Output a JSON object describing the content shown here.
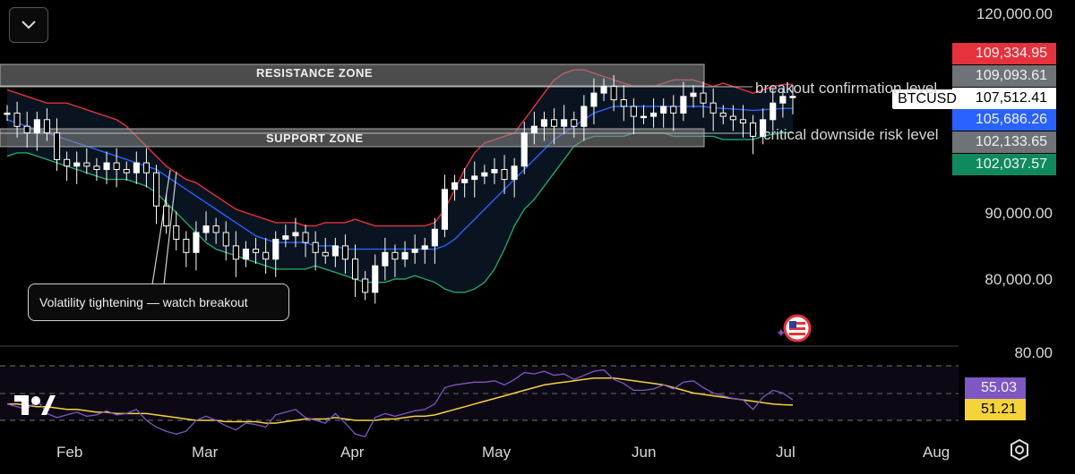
{
  "symbol": "BTCUSD",
  "price_axis": {
    "ticks": [
      "120,000.00",
      "90,000.00",
      "80,000.00"
    ],
    "badges": [
      {
        "text": "109,334.95",
        "color": "#e5323c"
      },
      {
        "text": "109,093.61",
        "color": "#6f7378"
      },
      {
        "text": "107,512.41",
        "color": "#ffffff"
      },
      {
        "text": "105,686.26",
        "color": "#2962ff"
      },
      {
        "text": "102,133.65",
        "color": "#6f7378"
      },
      {
        "text": "102,037.57",
        "color": "#0f8a5f"
      }
    ]
  },
  "rsi_axis": {
    "tick": "80.00",
    "badges": [
      {
        "text": "55.03",
        "color": "#7e57c2"
      },
      {
        "text": "51.21",
        "color": "#f5d33b"
      }
    ]
  },
  "annotations": {
    "resistance_zone": "RESISTANCE ZONE",
    "support_zone": "SUPPORT ZONE",
    "breakout_level": "breakout confirmation level",
    "downside_level": "critical downside risk level",
    "callout": "Volatility tightening — watch breakout"
  },
  "time_axis": [
    "Feb",
    "Mar",
    "Apr",
    "May",
    "Jun",
    "Jul",
    "Aug"
  ],
  "icons": {
    "collapse": "chevron-down-icon",
    "logo": "tradingview-logo",
    "settings": "settings-icon",
    "flag": "us-flag-icon"
  },
  "colors": {
    "candles": "#ffffff",
    "upper_band": "#e5323c",
    "basis": "#2962ff",
    "lower_band": "#26a269",
    "rsi": "#7e57c2",
    "rsi_ma": "#f5d33b"
  },
  "chart_data": {
    "type": "candlestick",
    "symbol": "BTCUSD",
    "x": [
      "Jan 23",
      "Jan 25",
      "Jan 27",
      "Jan 29",
      "Jan 31",
      "Feb 2",
      "Feb 4",
      "Feb 6",
      "Feb 8",
      "Feb 10",
      "Feb 12",
      "Feb 14",
      "Feb 16",
      "Feb 18",
      "Feb 20",
      "Feb 22",
      "Feb 24",
      "Feb 26",
      "Feb 28",
      "Mar 2",
      "Mar 4",
      "Mar 6",
      "Mar 8",
      "Mar 10",
      "Mar 12",
      "Mar 14",
      "Mar 16",
      "Mar 18",
      "Mar 20",
      "Mar 22",
      "Mar 24",
      "Mar 26",
      "Mar 28",
      "Mar 30",
      "Apr 1",
      "Apr 3",
      "Apr 5",
      "Apr 7",
      "Apr 9",
      "Apr 11",
      "Apr 13",
      "Apr 15",
      "Apr 17",
      "Apr 19",
      "Apr 21",
      "Apr 23",
      "Apr 25",
      "Apr 27",
      "Apr 29",
      "May 1",
      "May 3",
      "May 5",
      "May 7",
      "May 9",
      "May 11",
      "May 13",
      "May 15",
      "May 17",
      "May 19",
      "May 21",
      "May 23",
      "May 25",
      "May 27",
      "May 29",
      "May 31",
      "Jun 2",
      "Jun 4",
      "Jun 6",
      "Jun 8",
      "Jun 10",
      "Jun 12",
      "Jun 14",
      "Jun 16",
      "Jun 18",
      "Jun 20",
      "Jun 22",
      "Jun 24",
      "Jun 26",
      "Jun 28",
      "Jun 30"
    ],
    "close": [
      105000,
      103000,
      102000,
      104000,
      102000,
      98000,
      97000,
      97500,
      97000,
      96500,
      97500,
      96500,
      96000,
      97500,
      96000,
      91000,
      88000,
      86000,
      84000,
      87000,
      88000,
      87000,
      85000,
      83000,
      84500,
      84000,
      83000,
      86000,
      86500,
      87000,
      85500,
      84000,
      83500,
      85000,
      83000,
      80000,
      78000,
      82000,
      84000,
      83000,
      84000,
      84500,
      85000,
      87500,
      93500,
      94500,
      95000,
      95500,
      96000,
      96500,
      95000,
      97000,
      102000,
      103000,
      104000,
      103000,
      104000,
      103000,
      106000,
      108000,
      109000,
      107000,
      106000,
      104500,
      104500,
      105000,
      106000,
      105000,
      107500,
      108000,
      106500,
      105000,
      104500,
      104000,
      103500,
      101500,
      104000,
      106500,
      107500,
      107512
    ],
    "series": [
      {
        "name": "upper band",
        "values": [
          108500,
          108000,
          107500,
          107000,
          106500,
          106500,
          106500,
          106000,
          105500,
          105000,
          104500,
          104000,
          103000,
          101500,
          100000,
          98500,
          97000,
          96000,
          95000,
          94500,
          93500,
          92500,
          91500,
          90500,
          90000,
          89500,
          89000,
          88500,
          88500,
          88500,
          88000,
          88000,
          88500,
          88500,
          88500,
          89000,
          88500,
          88000,
          88000,
          88000,
          88000,
          88000,
          88000,
          88500,
          90500,
          93500,
          96500,
          99000,
          100500,
          101000,
          101500,
          102000,
          104000,
          106000,
          108000,
          110000,
          111000,
          111500,
          111500,
          111000,
          110500,
          110000,
          109500,
          109000,
          109000,
          109000,
          109500,
          110000,
          110000,
          110000,
          109500,
          109000,
          109500,
          109000,
          108500,
          108000,
          108500,
          109000,
          109300,
          109335
        ]
      },
      {
        "name": "basis",
        "values": [
          104000,
          103500,
          103000,
          102500,
          102000,
          101500,
          101000,
          100500,
          100000,
          99500,
          99000,
          98500,
          98000,
          97500,
          97000,
          96500,
          95500,
          94500,
          93500,
          92500,
          91500,
          90500,
          89500,
          88500,
          87500,
          86500,
          86000,
          85500,
          85500,
          85500,
          85500,
          85000,
          85000,
          85000,
          84500,
          84500,
          84500,
          84500,
          84500,
          84500,
          84500,
          84500,
          84500,
          84500,
          85000,
          86000,
          87500,
          89000,
          90500,
          92000,
          93500,
          95000,
          96500,
          98000,
          99500,
          101000,
          102000,
          103000,
          104000,
          105000,
          105500,
          106000,
          106000,
          106000,
          106000,
          106000,
          106000,
          106000,
          106000,
          106000,
          106000,
          105800,
          105700,
          105600,
          105500,
          105400,
          105500,
          105600,
          105686,
          105686
        ]
      },
      {
        "name": "lower band",
        "values": [
          98500,
          99000,
          99000,
          98500,
          98000,
          97500,
          97000,
          96500,
          96000,
          95500,
          95000,
          95000,
          95000,
          94500,
          94000,
          93000,
          91500,
          90000,
          88500,
          87000,
          85500,
          84500,
          84000,
          83500,
          83000,
          82500,
          82000,
          81500,
          81500,
          81500,
          81500,
          82000,
          81500,
          81000,
          80500,
          80000,
          79500,
          79500,
          79500,
          80000,
          80000,
          80500,
          80000,
          79500,
          78500,
          78000,
          78000,
          78500,
          79500,
          81500,
          84500,
          88000,
          90500,
          92000,
          94000,
          96000,
          98000,
          100000,
          101000,
          101500,
          101500,
          101500,
          101500,
          102000,
          102000,
          102000,
          102000,
          101500,
          101500,
          101500,
          101500,
          101500,
          101000,
          101000,
          101000,
          101000,
          101500,
          101800,
          102000,
          102038
        ]
      },
      {
        "name": "RSI",
        "values": [
          52,
          50,
          48,
          55,
          45,
          42,
          44,
          46,
          43,
          44,
          47,
          44,
          45,
          48,
          40,
          35,
          32,
          30,
          32,
          40,
          43,
          40,
          36,
          33,
          38,
          37,
          35,
          44,
          46,
          48,
          42,
          40,
          38,
          45,
          38,
          30,
          28,
          42,
          45,
          43,
          45,
          47,
          48,
          52,
          64,
          66,
          67,
          68,
          68,
          69,
          66,
          70,
          75,
          74,
          76,
          73,
          74,
          70,
          73,
          76,
          77,
          70,
          67,
          62,
          62,
          63,
          66,
          63,
          68,
          69,
          64,
          60,
          58,
          56,
          55,
          48,
          57,
          62,
          60,
          55.03
        ]
      },
      {
        "name": "RSI MA",
        "values": [
          52,
          52,
          51,
          50,
          50,
          49,
          48,
          48,
          47,
          46,
          46,
          45,
          45,
          45,
          45,
          44,
          43,
          42,
          41,
          40,
          40,
          40,
          39,
          39,
          39,
          39,
          38,
          38,
          39,
          40,
          41,
          41,
          41,
          42,
          41,
          40,
          40,
          40,
          41,
          41,
          42,
          43,
          43,
          44,
          46,
          48,
          50,
          52,
          54,
          56,
          58,
          60,
          62,
          64,
          66,
          67,
          68,
          69,
          70,
          71,
          71,
          71,
          70,
          69,
          68,
          67,
          66,
          64,
          62,
          60,
          59,
          58,
          57,
          56,
          55,
          54,
          53,
          52,
          51.5,
          51.21
        ]
      }
    ],
    "annotations": [
      "RESISTANCE ZONE",
      "SUPPORT ZONE",
      "breakout confirmation level",
      "critical downside risk level",
      "Volatility tightening — watch breakout"
    ],
    "ylim": [
      70000,
      123000
    ],
    "rsi_ylim": [
      20,
      80
    ],
    "grid": false
  }
}
